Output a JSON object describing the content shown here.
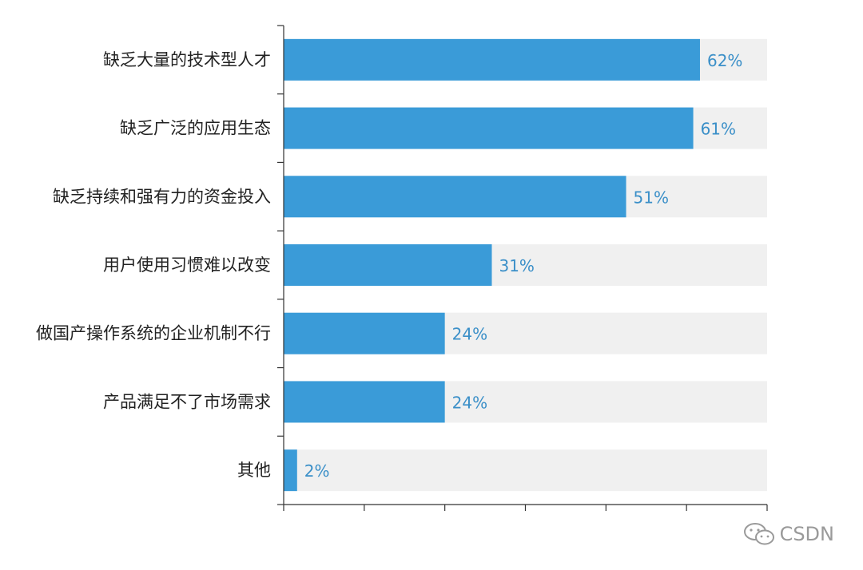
{
  "chart_data": {
    "type": "bar",
    "orientation": "horizontal",
    "categories": [
      "缺乏大量的技术型人才",
      "缺乏广泛的应用生态",
      "缺乏持续和强有力的资金投入",
      "用户使用习惯难以改变",
      "做国产操作系统的企业机制不行",
      "产品满足不了市场需求",
      "其他"
    ],
    "values": [
      62,
      61,
      51,
      31,
      24,
      24,
      2
    ],
    "value_labels": [
      "62%",
      "61%",
      "51%",
      "31%",
      "24%",
      "24%",
      "2%"
    ],
    "xlim": [
      0,
      72
    ],
    "grid": false,
    "colors": {
      "bar": "#3a9bd8",
      "track": "#f0f0f0",
      "axis": "#333333",
      "value_text": "#3a8fc8"
    }
  },
  "watermark": {
    "text": "CSDN",
    "icon": "wechat-icon"
  }
}
